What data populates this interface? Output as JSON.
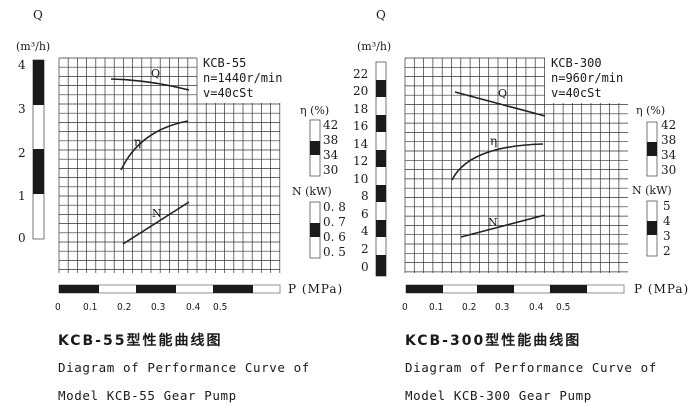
{
  "chart_data": [
    {
      "type": "line",
      "title": "KCB-55型性能曲线图",
      "subtitle": "Diagram of Performance Curve of Model KCB-55 Gear Pump",
      "model": "KCB-55",
      "speed": "n=1440r/min",
      "viscosity": "v=40cSt",
      "xlabel": "P (MPa)",
      "x_ticks": [
        "0",
        "0.1",
        "0.2",
        "0.3",
        "0.4",
        "0.5"
      ],
      "xlim": [
        0,
        0.55
      ],
      "axes": {
        "Q": {
          "label": "Q",
          "unit": "(m³/h)",
          "ticks": [
            "4",
            "3",
            "2",
            "1",
            "0"
          ],
          "range": [
            0,
            4
          ]
        },
        "eta": {
          "label": "η (%)",
          "ticks": [
            "42",
            "38",
            "34",
            "30"
          ],
          "range": [
            30,
            42
          ]
        },
        "N": {
          "label": "N (kW)",
          "ticks": [
            "0.8",
            "0.7",
            "0.6",
            "0.5"
          ],
          "range": [
            0.5,
            0.8
          ]
        }
      },
      "series": [
        {
          "name": "Q",
          "axis": "Q",
          "x": [
            0.2,
            0.3,
            0.4
          ],
          "values": [
            3.6,
            3.5,
            3.35
          ]
        },
        {
          "name": "η",
          "axis": "eta",
          "x": [
            0.2,
            0.3,
            0.4
          ],
          "values": [
            35,
            38,
            40
          ]
        },
        {
          "name": "N",
          "axis": "N",
          "x": [
            0.2,
            0.3,
            0.4
          ],
          "values": [
            0.6,
            0.67,
            0.73
          ]
        }
      ],
      "grid": true
    },
    {
      "type": "line",
      "title": "KCB-300型性能曲线图",
      "subtitle": "Diagram of Performance Curve of Model KCB-300 Gear Pump",
      "model": "KCB-300",
      "speed": "n=960r/min",
      "viscosity": "v=40cSt",
      "xlabel": "P (MPa)",
      "x_ticks": [
        "0",
        "0.1",
        "0.2",
        "0.3",
        "0.4",
        "0.5"
      ],
      "xlim": [
        0,
        0.55
      ],
      "axes": {
        "Q": {
          "label": "Q",
          "unit": "(m³/h)",
          "ticks": [
            "22",
            "20",
            "18",
            "16",
            "14",
            "12",
            "10",
            "8",
            "6",
            "4",
            "2",
            "0"
          ],
          "range": [
            0,
            22
          ]
        },
        "eta": {
          "label": "η (%)",
          "ticks": [
            "42",
            "38",
            "34",
            "30"
          ],
          "range": [
            30,
            42
          ]
        },
        "N": {
          "label": "N (kW)",
          "ticks": [
            "5",
            "4",
            "3",
            "2"
          ],
          "range": [
            2,
            5
          ]
        }
      },
      "series": [
        {
          "name": "Q",
          "axis": "Q",
          "x": [
            0.15,
            0.3,
            0.42
          ],
          "values": [
            20.2,
            18.8,
            17.5
          ]
        },
        {
          "name": "η",
          "axis": "eta",
          "x": [
            0.15,
            0.3,
            0.42
          ],
          "values": [
            33,
            37,
            38
          ]
        },
        {
          "name": "N",
          "axis": "N",
          "x": [
            0.18,
            0.3,
            0.42
          ],
          "values": [
            3.5,
            3.9,
            4.3
          ]
        }
      ],
      "grid": true
    }
  ],
  "left": {
    "q_label": "Q",
    "q_unit": "(m³/h)",
    "q_ticks": [
      "4",
      "3",
      "2",
      "1",
      "0"
    ],
    "info": [
      "KCB-55",
      "n=1440r/min",
      "v=40cSt"
    ],
    "eta_label": "η (%)",
    "eta_ticks": [
      "42",
      "38",
      "34",
      "30"
    ],
    "n_label": "N (kW)",
    "n_ticks": [
      "0. 8",
      "0. 7",
      "0. 6",
      "0. 5"
    ],
    "p_label": "P (MPa)",
    "p_ticks": [
      "0",
      "0.1",
      "0.2",
      "0.3",
      "0.4",
      "0.5"
    ],
    "curve_labels": {
      "q": "Q",
      "eta": "η",
      "n": "N"
    },
    "title_cn": "KCB-55型性能曲线图",
    "title_en_1": "Diagram of Performance Curve of",
    "title_en_2": "Model KCB-55 Gear Pump"
  },
  "right": {
    "q_label": "Q",
    "q_unit": "(m³/h)",
    "q_ticks": [
      "22",
      "20",
      "18",
      "16",
      "14",
      "12",
      "10",
      "8",
      "6",
      "4",
      "2",
      "0"
    ],
    "info": [
      "KCB-300",
      "n=960r/min",
      "v=40cSt"
    ],
    "eta_label": "η (%)",
    "eta_ticks": [
      "42",
      "38",
      "34",
      "30"
    ],
    "n_label": "N (kW)",
    "n_ticks": [
      "5",
      "4",
      "3",
      "2"
    ],
    "p_label": "P (MPa)",
    "p_ticks": [
      "0",
      "0.1",
      "0.2",
      "0.3",
      "0.4",
      "0.5"
    ],
    "curve_labels": {
      "q": "Q",
      "eta": "η",
      "n": "N"
    },
    "title_cn": "KCB-300型性能曲线图",
    "title_en_1": "Diagram of Performance Curve of",
    "title_en_2": "Model KCB-300 Gear Pump"
  },
  "colors": {
    "ink": "#1a1a1a",
    "grid": "#333333",
    "background": "#ffffff"
  }
}
